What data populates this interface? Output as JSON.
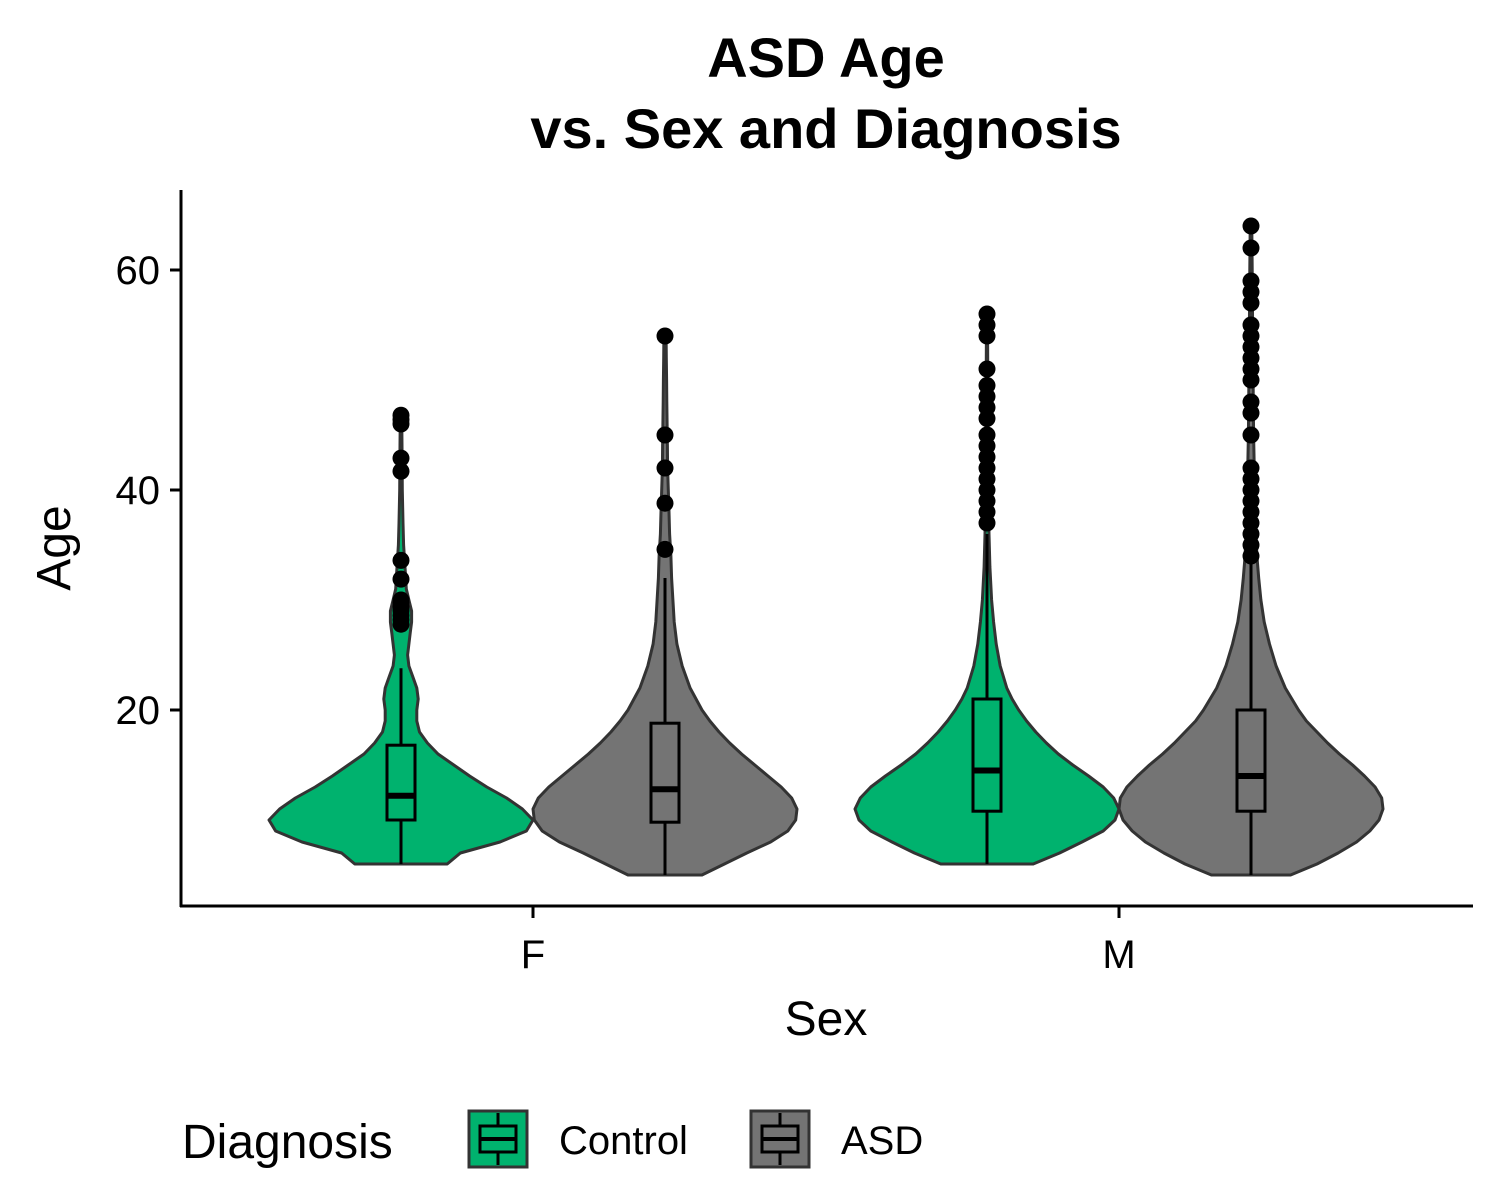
{
  "chart_data": {
    "type": "violin",
    "title": [
      "ASD Age",
      "vs. Sex and Diagnosis"
    ],
    "xlabel": "Sex",
    "ylabel": "Age",
    "categories": [
      "F",
      "M"
    ],
    "ylim": [
      3,
      67
    ],
    "yticks": [
      20,
      40,
      60
    ],
    "grid": false,
    "legend": {
      "title": "Diagnosis",
      "position": "bottom-left",
      "entries": [
        "Control",
        "ASD"
      ]
    },
    "series": [
      {
        "name": "Control",
        "color": "#00B26E",
        "groups": [
          {
            "category": "F",
            "box": {
              "lower_whisker": 6,
              "q1": 10,
              "median": 12.2,
              "q3": 16.8,
              "upper_whisker": 23.8
            },
            "density": [
              [
                6,
                0.35
              ],
              [
                7,
                0.45
              ],
              [
                8,
                0.75
              ],
              [
                9,
                0.95
              ],
              [
                10,
                1.0
              ],
              [
                11,
                0.92
              ],
              [
                12,
                0.8
              ],
              [
                13,
                0.65
              ],
              [
                14,
                0.52
              ],
              [
                15,
                0.4
              ],
              [
                16,
                0.28
              ],
              [
                17,
                0.2
              ],
              [
                18,
                0.14
              ],
              [
                19,
                0.12
              ],
              [
                20,
                0.12
              ],
              [
                21,
                0.13
              ],
              [
                22,
                0.12
              ],
              [
                23,
                0.09
              ],
              [
                24,
                0.06
              ],
              [
                25,
                0.05
              ],
              [
                26,
                0.06
              ],
              [
                27,
                0.07
              ],
              [
                28,
                0.08
              ],
              [
                29,
                0.08
              ],
              [
                30,
                0.06
              ],
              [
                31,
                0.04
              ],
              [
                33,
                0.03
              ],
              [
                35,
                0.02
              ],
              [
                37,
                0.015
              ],
              [
                40,
                0.01
              ],
              [
                43,
                0.008
              ],
              [
                46,
                0.006
              ]
            ],
            "outliers": [
              27.8,
              28.2,
              28.6,
              29.0,
              29.4,
              29.8,
              30.0,
              31.9,
              33.6,
              41.7,
              42.9,
              46.0,
              46.4,
              46.8
            ]
          },
          {
            "category": "M",
            "box": {
              "lower_whisker": 6,
              "q1": 10.8,
              "median": 14.5,
              "q3": 21,
              "upper_whisker": 36
            },
            "density": [
              [
                6,
                0.35
              ],
              [
                7,
                0.55
              ],
              [
                8,
                0.72
              ],
              [
                9,
                0.88
              ],
              [
                10,
                0.97
              ],
              [
                11,
                1.0
              ],
              [
                12,
                0.96
              ],
              [
                13,
                0.88
              ],
              [
                14,
                0.77
              ],
              [
                15,
                0.65
              ],
              [
                16,
                0.54
              ],
              [
                17,
                0.45
              ],
              [
                18,
                0.37
              ],
              [
                19,
                0.3
              ],
              [
                20,
                0.24
              ],
              [
                21,
                0.19
              ],
              [
                22,
                0.15
              ],
              [
                24,
                0.1
              ],
              [
                26,
                0.07
              ],
              [
                28,
                0.05
              ],
              [
                30,
                0.035
              ],
              [
                33,
                0.022
              ],
              [
                36,
                0.015
              ],
              [
                40,
                0.01
              ],
              [
                45,
                0.008
              ],
              [
                50,
                0.006
              ],
              [
                56,
                0.004
              ]
            ],
            "outliers": [
              37,
              38,
              39,
              40,
              41,
              42,
              43,
              44,
              45,
              46.5,
              47.5,
              48.5,
              49.5,
              51,
              54,
              55,
              56
            ]
          }
        ]
      },
      {
        "name": "ASD",
        "color": "#747474",
        "groups": [
          {
            "category": "F",
            "box": {
              "lower_whisker": 5,
              "q1": 9.8,
              "median": 12.8,
              "q3": 18.8,
              "upper_whisker": 32
            },
            "density": [
              [
                5,
                0.28
              ],
              [
                6,
                0.45
              ],
              [
                7,
                0.62
              ],
              [
                8,
                0.8
              ],
              [
                9,
                0.93
              ],
              [
                10,
                0.99
              ],
              [
                11,
                1.0
              ],
              [
                12,
                0.96
              ],
              [
                13,
                0.88
              ],
              [
                14,
                0.78
              ],
              [
                15,
                0.68
              ],
              [
                16,
                0.58
              ],
              [
                17,
                0.49
              ],
              [
                18,
                0.41
              ],
              [
                19,
                0.34
              ],
              [
                20,
                0.28
              ],
              [
                22,
                0.19
              ],
              [
                24,
                0.13
              ],
              [
                26,
                0.09
              ],
              [
                28,
                0.07
              ],
              [
                30,
                0.06
              ],
              [
                32,
                0.05
              ],
              [
                34,
                0.045
              ],
              [
                36,
                0.035
              ],
              [
                38,
                0.03
              ],
              [
                40,
                0.025
              ],
              [
                42,
                0.02
              ],
              [
                44,
                0.018
              ],
              [
                46,
                0.016
              ],
              [
                48,
                0.014
              ],
              [
                50,
                0.012
              ],
              [
                52,
                0.01
              ],
              [
                54,
                0.008
              ]
            ],
            "outliers": [
              34.6,
              38.8,
              42,
              45,
              54
            ]
          },
          {
            "category": "M",
            "box": {
              "lower_whisker": 5,
              "q1": 10.8,
              "median": 14,
              "q3": 20,
              "upper_whisker": 33.5
            },
            "density": [
              [
                5,
                0.3
              ],
              [
                6,
                0.5
              ],
              [
                7,
                0.66
              ],
              [
                8,
                0.8
              ],
              [
                9,
                0.9
              ],
              [
                10,
                0.97
              ],
              [
                11,
                1.0
              ],
              [
                12,
                0.99
              ],
              [
                13,
                0.94
              ],
              [
                14,
                0.86
              ],
              [
                15,
                0.77
              ],
              [
                16,
                0.67
              ],
              [
                17,
                0.58
              ],
              [
                18,
                0.5
              ],
              [
                19,
                0.42
              ],
              [
                20,
                0.36
              ],
              [
                22,
                0.26
              ],
              [
                24,
                0.19
              ],
              [
                26,
                0.14
              ],
              [
                28,
                0.1
              ],
              [
                30,
                0.075
              ],
              [
                32,
                0.058
              ],
              [
                34,
                0.045
              ],
              [
                37,
                0.035
              ],
              [
                40,
                0.028
              ],
              [
                45,
                0.02
              ],
              [
                50,
                0.016
              ],
              [
                55,
                0.012
              ],
              [
                60,
                0.009
              ],
              [
                64,
                0.006
              ]
            ],
            "outliers": [
              34,
              35,
              36,
              37,
              38,
              39,
              40,
              41,
              42,
              45,
              47,
              48,
              50,
              51,
              52,
              53,
              54,
              55,
              57,
              58,
              59,
              62,
              64
            ]
          }
        ]
      }
    ]
  }
}
